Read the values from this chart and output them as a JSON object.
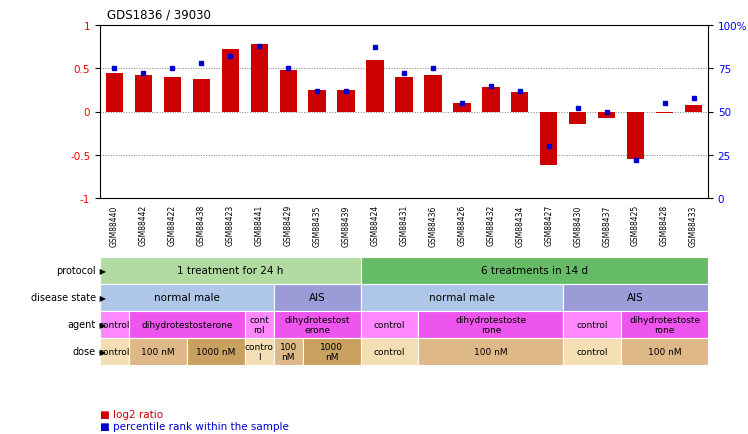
{
  "title": "GDS1836 / 39030",
  "samples": [
    "GSM88440",
    "GSM88442",
    "GSM88422",
    "GSM88438",
    "GSM88423",
    "GSM88441",
    "GSM88429",
    "GSM88435",
    "GSM88439",
    "GSM88424",
    "GSM88431",
    "GSM88436",
    "GSM88426",
    "GSM88432",
    "GSM88434",
    "GSM88427",
    "GSM88430",
    "GSM88437",
    "GSM88425",
    "GSM88428",
    "GSM88433"
  ],
  "log2_ratio": [
    0.45,
    0.42,
    0.4,
    0.38,
    0.72,
    0.78,
    0.48,
    0.25,
    0.25,
    0.6,
    0.4,
    0.42,
    0.1,
    0.28,
    0.22,
    -0.62,
    -0.15,
    -0.07,
    -0.55,
    -0.02,
    0.08
  ],
  "percentile": [
    75,
    72,
    75,
    78,
    82,
    88,
    75,
    62,
    62,
    87,
    72,
    75,
    55,
    65,
    62,
    30,
    52,
    50,
    22,
    55,
    58
  ],
  "protocol_spans": [
    {
      "label": "1 treatment for 24 h",
      "start": 0,
      "end": 9,
      "color": "#b2dba1"
    },
    {
      "label": "6 treatments in 14 d",
      "start": 9,
      "end": 21,
      "color": "#66bb66"
    }
  ],
  "disease_state_spans": [
    {
      "label": "normal male",
      "start": 0,
      "end": 6,
      "color": "#aec6e8"
    },
    {
      "label": "AIS",
      "start": 6,
      "end": 9,
      "color": "#9b9bd7"
    },
    {
      "label": "normal male",
      "start": 9,
      "end": 16,
      "color": "#aec6e8"
    },
    {
      "label": "AIS",
      "start": 16,
      "end": 21,
      "color": "#9b9bd7"
    }
  ],
  "agent_spans": [
    {
      "label": "control",
      "start": 0,
      "end": 1,
      "color": "#ff88ff"
    },
    {
      "label": "dihydrotestosterone",
      "start": 1,
      "end": 5,
      "color": "#ee55ee"
    },
    {
      "label": "cont\nrol",
      "start": 5,
      "end": 6,
      "color": "#ff88ff"
    },
    {
      "label": "dihydrotestost\nerone",
      "start": 6,
      "end": 9,
      "color": "#ee55ee"
    },
    {
      "label": "control",
      "start": 9,
      "end": 11,
      "color": "#ff88ff"
    },
    {
      "label": "dihydrotestoste\nrone",
      "start": 11,
      "end": 16,
      "color": "#ee55ee"
    },
    {
      "label": "control",
      "start": 16,
      "end": 18,
      "color": "#ff88ff"
    },
    {
      "label": "dihydrotestoste\nrone",
      "start": 18,
      "end": 21,
      "color": "#ee55ee"
    }
  ],
  "dose_spans": [
    {
      "label": "control",
      "start": 0,
      "end": 1,
      "color": "#f5deb3"
    },
    {
      "label": "100 nM",
      "start": 1,
      "end": 3,
      "color": "#deb887"
    },
    {
      "label": "1000 nM",
      "start": 3,
      "end": 5,
      "color": "#c8a060"
    },
    {
      "label": "contro\nl",
      "start": 5,
      "end": 6,
      "color": "#f5deb3"
    },
    {
      "label": "100\nnM",
      "start": 6,
      "end": 7,
      "color": "#deb887"
    },
    {
      "label": "1000\nnM",
      "start": 7,
      "end": 9,
      "color": "#c8a060"
    },
    {
      "label": "control",
      "start": 9,
      "end": 11,
      "color": "#f5deb3"
    },
    {
      "label": "100 nM",
      "start": 11,
      "end": 16,
      "color": "#deb887"
    },
    {
      "label": "control",
      "start": 16,
      "end": 18,
      "color": "#f5deb3"
    },
    {
      "label": "100 nM",
      "start": 18,
      "end": 21,
      "color": "#deb887"
    }
  ],
  "row_labels": [
    "protocol",
    "disease state",
    "agent",
    "dose"
  ],
  "ylim": [
    -1,
    1
  ],
  "y2lim": [
    0,
    100
  ],
  "yticks": [
    -1,
    -0.5,
    0,
    0.5,
    1
  ],
  "y2ticks": [
    0,
    25,
    50,
    75,
    100
  ],
  "bar_color": "#cc0000",
  "dot_color": "#0000cc",
  "background_color": "#ffffff"
}
